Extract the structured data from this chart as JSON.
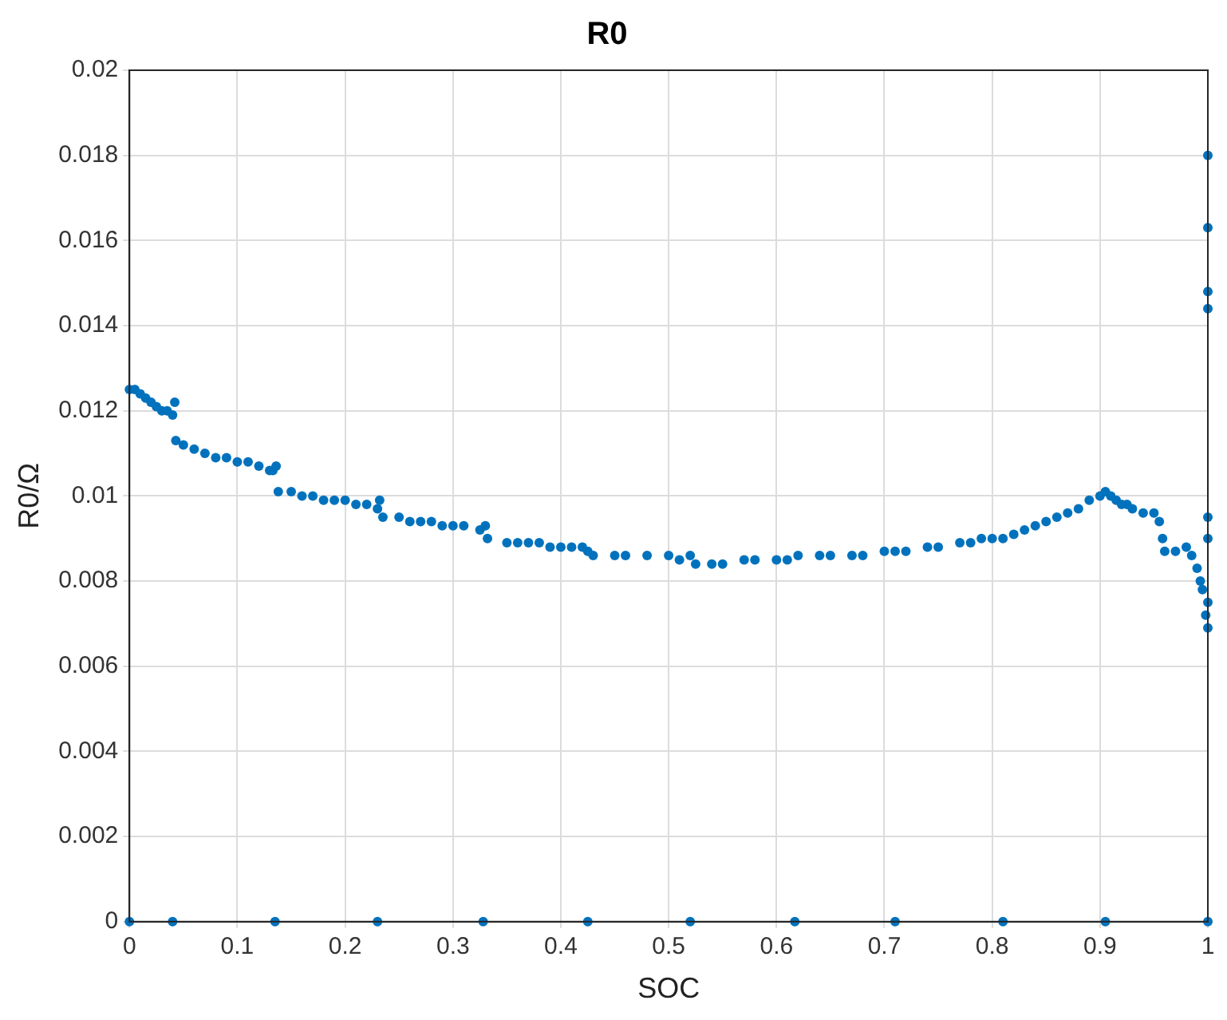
{
  "chart_data": {
    "type": "scatter",
    "title": "R0",
    "xlabel": "SOC",
    "ylabel": "R0/Ω",
    "xlim": [
      0,
      1
    ],
    "xticks": [
      0,
      0.1,
      0.2,
      0.3,
      0.4,
      0.5,
      0.6,
      0.7,
      0.8,
      0.9,
      1
    ],
    "ylim": [
      0,
      0.02
    ],
    "yticks": [
      0,
      0.002,
      0.004,
      0.006,
      0.008,
      0.01,
      0.012,
      0.014,
      0.016,
      0.018,
      0.02
    ],
    "grid": true,
    "marker": "circle",
    "series": [
      {
        "color": "#0072bd",
        "x": [
          0,
          0.005,
          0.01,
          0.015,
          0.02,
          0.025,
          0.03,
          0.035,
          0.04,
          0.042,
          0.043,
          0.05,
          0.06,
          0.07,
          0.08,
          0.09,
          0.1,
          0.11,
          0.12,
          0.13,
          0.133,
          0.136,
          0.138,
          0.15,
          0.16,
          0.17,
          0.18,
          0.19,
          0.2,
          0.21,
          0.22,
          0.23,
          0.232,
          0.235,
          0.25,
          0.26,
          0.27,
          0.28,
          0.29,
          0.3,
          0.31,
          0.325,
          0.33,
          0.332,
          0.35,
          0.36,
          0.37,
          0.38,
          0.39,
          0.4,
          0.41,
          0.42,
          0.425,
          0.43,
          0.45,
          0.46,
          0.48,
          0.5,
          0.51,
          0.52,
          0.525,
          0.54,
          0.55,
          0.57,
          0.58,
          0.6,
          0.61,
          0.62,
          0.64,
          0.65,
          0.67,
          0.68,
          0.7,
          0.71,
          0.72,
          0.74,
          0.75,
          0.77,
          0.78,
          0.79,
          0.8,
          0.81,
          0.82,
          0.83,
          0.84,
          0.85,
          0.86,
          0.87,
          0.88,
          0.89,
          0.9,
          0.905,
          0.91,
          0.915,
          0.92,
          0.925,
          0.93,
          0.94,
          0.95,
          0.955,
          0.958,
          0.96,
          0.97,
          0.98,
          0.985,
          0.99,
          0.993,
          0.995,
          0.998,
          1,
          1,
          1,
          1,
          1,
          1,
          1,
          1
        ],
        "values": [
          0.0125,
          0.0125,
          0.0124,
          0.0123,
          0.0122,
          0.0121,
          0.012,
          0.012,
          0.0119,
          0.0122,
          0.0113,
          0.0112,
          0.0111,
          0.011,
          0.0109,
          0.0109,
          0.0108,
          0.0108,
          0.0107,
          0.0106,
          0.0106,
          0.0107,
          0.0101,
          0.0101,
          0.01,
          0.01,
          0.0099,
          0.0099,
          0.0099,
          0.0098,
          0.0098,
          0.0097,
          0.0099,
          0.0095,
          0.0095,
          0.0094,
          0.0094,
          0.0094,
          0.0093,
          0.0093,
          0.0093,
          0.0092,
          0.0093,
          0.009,
          0.0089,
          0.0089,
          0.0089,
          0.0089,
          0.0088,
          0.0088,
          0.0088,
          0.0088,
          0.0087,
          0.0086,
          0.0086,
          0.0086,
          0.0086,
          0.0086,
          0.0085,
          0.0086,
          0.0084,
          0.0084,
          0.0084,
          0.0085,
          0.0085,
          0.0085,
          0.0085,
          0.0086,
          0.0086,
          0.0086,
          0.0086,
          0.0086,
          0.0087,
          0.0087,
          0.0087,
          0.0088,
          0.0088,
          0.0089,
          0.0089,
          0.009,
          0.009,
          0.009,
          0.0091,
          0.0092,
          0.0093,
          0.0094,
          0.0095,
          0.0096,
          0.0097,
          0.0099,
          0.01,
          0.0101,
          0.01,
          0.0099,
          0.0098,
          0.0098,
          0.0097,
          0.0096,
          0.0096,
          0.0094,
          0.009,
          0.0087,
          0.0087,
          0.0088,
          0.0086,
          0.0083,
          0.008,
          0.0078,
          0.0072,
          0.0069,
          0.0075,
          0.009,
          0.0095,
          0.0144,
          0.0148,
          0.0163,
          0.018
        ]
      },
      {
        "color": "#0072bd",
        "x": [
          0,
          0.04,
          0.135,
          0.23,
          0.328,
          0.425,
          0.52,
          0.617,
          0.71,
          0.81,
          0.905,
          1
        ],
        "values": [
          0,
          0,
          0,
          0,
          0,
          0,
          0,
          0,
          0,
          0,
          0,
          0
        ]
      }
    ]
  }
}
